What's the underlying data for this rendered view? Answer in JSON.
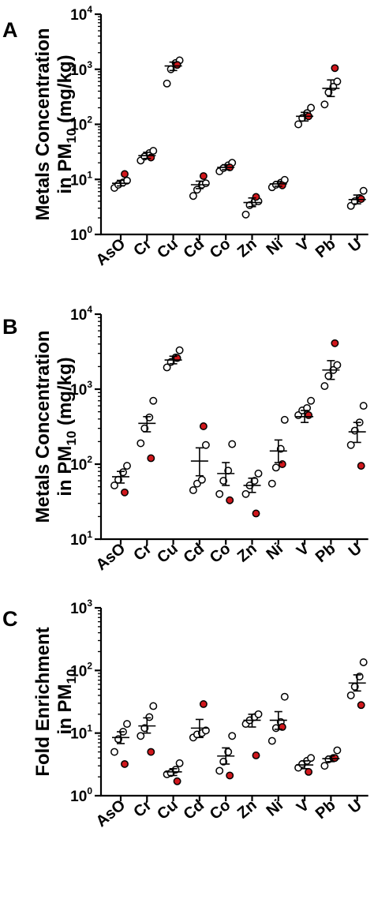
{
  "colors": {
    "highlight": "#d0171c",
    "open": "#ffffff",
    "ink": "#000000"
  },
  "chart_data": [
    {
      "type": "scatter",
      "panel": "A",
      "ylabel_line1": "Metals Concentration",
      "ylabel_line2_main": "in PM",
      "ylabel_line2_sub": "10",
      "ylabel_line2_tail": " (mg/kg)",
      "yscale": "log",
      "ylim": [
        1,
        10000
      ],
      "yticks": [
        {
          "base": "10",
          "exp": "0",
          "value": 1
        },
        {
          "base": "10",
          "exp": "1",
          "value": 10
        },
        {
          "base": "10",
          "exp": "2",
          "value": 100
        },
        {
          "base": "10",
          "exp": "3",
          "value": 1000
        },
        {
          "base": "10",
          "exp": "4",
          "value": 10000
        }
      ],
      "categories": [
        "AsO",
        "Cr",
        "Cu",
        "Cd",
        "Co",
        "Zn",
        "Ni",
        "V",
        "Pb",
        "U"
      ],
      "groups": [
        {
          "mean": 8.5,
          "sem": [
            7.6,
            9.6
          ],
          "open": [
            7.0,
            8.0,
            8.8,
            9.5
          ],
          "red": 12.5
        },
        {
          "mean": 27,
          "sem": [
            24,
            31
          ],
          "open": [
            22,
            26,
            30,
            33
          ],
          "red": 25
        },
        {
          "mean": 1150,
          "sem": [
            950,
            1350
          ],
          "open": [
            550,
            1000,
            1300,
            1450
          ],
          "red": 1200
        },
        {
          "mean": 8,
          "sem": [
            6.8,
            9.3
          ],
          "open": [
            5.0,
            6.5,
            8.0,
            8.5
          ],
          "red": 11.5
        },
        {
          "mean": 16.5,
          "sem": [
            15,
            18.5
          ],
          "open": [
            14,
            16,
            18,
            20
          ],
          "red": 16.5
        },
        {
          "mean": 3.8,
          "sem": [
            3.2,
            4.6
          ],
          "open": [
            2.3,
            3.4,
            3.9,
            4.0
          ],
          "red": 4.8
        },
        {
          "mean": 8.3,
          "sem": [
            7.5,
            9.2
          ],
          "open": [
            7.2,
            8.0,
            8.7,
            9.8
          ],
          "red": 7.8
        },
        {
          "mean": 140,
          "sem": [
            115,
            165
          ],
          "open": [
            100,
            130,
            160,
            200
          ],
          "red": 140
        },
        {
          "mean": 450,
          "sem": [
            320,
            640
          ],
          "open": [
            230,
            380,
            480,
            600
          ],
          "red": 1050
        },
        {
          "mean": 4.3,
          "sem": [
            3.6,
            5.2
          ],
          "open": [
            3.3,
            4.0,
            4.6,
            6.2
          ],
          "red": 4.4
        }
      ]
    },
    {
      "type": "scatter",
      "panel": "B",
      "ylabel_line1": "Metals Concentration",
      "ylabel_line2_main": "in PM",
      "ylabel_line2_sub": "10",
      "ylabel_line2_tail": " (mg/kg)",
      "yscale": "log",
      "ylim": [
        10,
        10000
      ],
      "yticks": [
        {
          "base": "10",
          "exp": "1",
          "value": 10
        },
        {
          "base": "10",
          "exp": "2",
          "value": 100
        },
        {
          "base": "10",
          "exp": "3",
          "value": 1000
        },
        {
          "base": "10",
          "exp": "4",
          "value": 10000
        }
      ],
      "categories": [
        "AsO",
        "Cr",
        "Cu",
        "Cd",
        "Co",
        "Zn",
        "Ni",
        "V",
        "Pb",
        "U"
      ],
      "groups": [
        {
          "mean": 68,
          "sem": [
            56,
            80
          ],
          "open": [
            52,
            62,
            78,
            95
          ],
          "red": 42
        },
        {
          "mean": 350,
          "sem": [
            270,
            430
          ],
          "open": [
            190,
            300,
            420,
            700
          ],
          "red": 120
        },
        {
          "mean": 2450,
          "sem": [
            2180,
            2750
          ],
          "open": [
            1950,
            2300,
            2650,
            3300
          ],
          "red": 2600
        },
        {
          "mean": 110,
          "sem": [
            70,
            165
          ],
          "open": [
            45,
            55,
            62,
            180
          ],
          "red": 320
        },
        {
          "mean": 75,
          "sem": [
            52,
            105
          ],
          "open": [
            40,
            60,
            82,
            185
          ],
          "red": 33
        },
        {
          "mean": 52,
          "sem": [
            42,
            65
          ],
          "open": [
            40,
            52,
            60,
            75
          ],
          "red": 22
        },
        {
          "mean": 150,
          "sem": [
            105,
            210
          ],
          "open": [
            55,
            90,
            160,
            390
          ],
          "red": 100
        },
        {
          "mean": 430,
          "sem": [
            360,
            520
          ],
          "open": [
            450,
            520,
            560,
            700
          ],
          "red": 450
        },
        {
          "mean": 1800,
          "sem": [
            1350,
            2400
          ],
          "open": [
            1100,
            1500,
            1800,
            2100
          ],
          "red": 4100
        },
        {
          "mean": 270,
          "sem": [
            195,
            360
          ],
          "open": [
            180,
            280,
            360,
            600
          ],
          "red": 95
        }
      ]
    },
    {
      "type": "scatter",
      "panel": "C",
      "ylabel_line1": "Fold Enrichment",
      "ylabel_line2_main": "in PM",
      "ylabel_line2_sub": "10",
      "ylabel_line2_tail": "",
      "yscale": "log",
      "ylim": [
        1,
        1000
      ],
      "yticks": [
        {
          "base": "10",
          "exp": "0",
          "value": 1
        },
        {
          "base": "10",
          "exp": "1",
          "value": 10
        },
        {
          "base": "10",
          "exp": "2",
          "value": 100
        },
        {
          "base": "10",
          "exp": "3",
          "value": 1000
        }
      ],
      "categories": [
        "AsO",
        "Cr",
        "Cu",
        "Cd",
        "Co",
        "Zn",
        "Ni",
        "V",
        "Pb",
        "U"
      ],
      "groups": [
        {
          "mean": 8.5,
          "sem": [
            6.8,
            10.5
          ],
          "open": [
            5.0,
            8.0,
            10.5,
            14
          ],
          "red": 3.2
        },
        {
          "mean": 13,
          "sem": [
            10,
            17.5
          ],
          "open": [
            9,
            12,
            18,
            27
          ],
          "red": 5.0
        },
        {
          "mean": 2.4,
          "sem": [
            2.1,
            2.7
          ],
          "open": [
            2.2,
            2.3,
            2.6,
            3.3
          ],
          "red": 1.7
        },
        {
          "mean": 12,
          "sem": [
            8.5,
            16.5
          ],
          "open": [
            8.5,
            9.5,
            10,
            11
          ],
          "red": 29
        },
        {
          "mean": 4.3,
          "sem": [
            3.2,
            5.8
          ],
          "open": [
            2.5,
            3.5,
            5.0,
            9.0
          ],
          "red": 2.1
        },
        {
          "mean": 16,
          "sem": [
            12.5,
            20
          ],
          "open": [
            14,
            16,
            18,
            20
          ],
          "red": 4.4
        },
        {
          "mean": 16,
          "sem": [
            11.5,
            22
          ],
          "open": [
            7.5,
            12,
            15,
            38
          ],
          "red": 12.5
        },
        {
          "mean": 3.1,
          "sem": [
            2.7,
            3.6
          ],
          "open": [
            2.8,
            3.2,
            3.6,
            4.0
          ],
          "red": 2.4
        },
        {
          "mean": 3.9,
          "sem": [
            3.5,
            4.3
          ],
          "open": [
            3.0,
            3.8,
            4.0,
            5.3
          ],
          "red": 4.0
        },
        {
          "mean": 63,
          "sem": [
            47,
            85
          ],
          "open": [
            40,
            55,
            80,
            135
          ],
          "red": 28
        }
      ]
    }
  ]
}
